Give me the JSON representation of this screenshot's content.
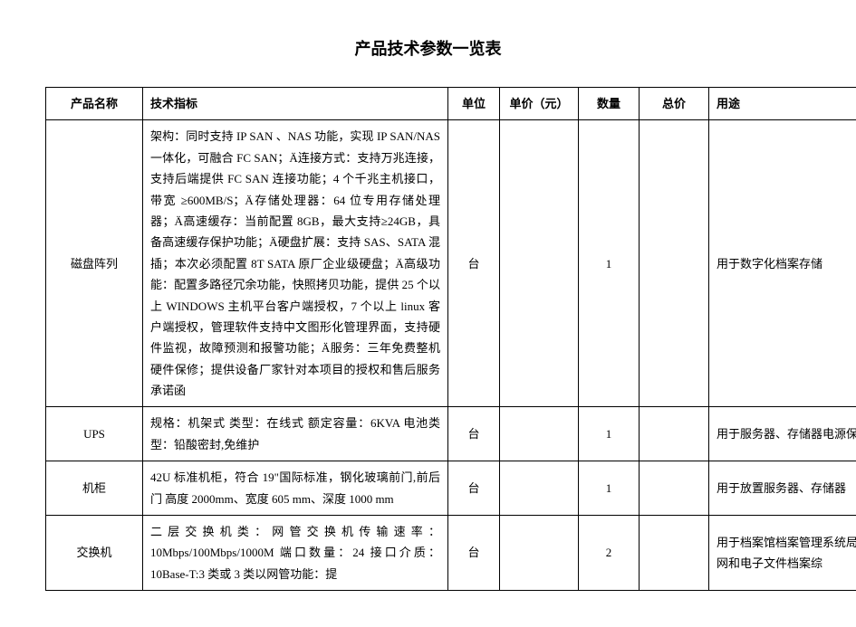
{
  "title": "产品技术参数一览表",
  "table": {
    "columns": [
      "产品名称",
      "技术指标",
      "单位",
      "单价（元）",
      "数量",
      "总价",
      "用途"
    ],
    "rows": [
      {
        "name": "磁盘阵列",
        "spec": "架构：同时支持 IP SAN 、NAS 功能，实现 IP SAN/NAS 一体化，可融合 FC SAN；Ä连接方式：支持万兆连接，支持后端提供 FC SAN 连接功能；4 个千兆主机接口，带宽 ≥600MB/S；Ä存储处理器：64 位专用存储处理器；Ä高速缓存：当前配置 8GB，最大支持≥24GB，具备高速缓存保护功能；Ä硬盘扩展：支持 SAS、SATA 混插；本次必须配置 8T SATA 原厂企业级硬盘；Ä高级功能：配置多路径冗余功能，快照拷贝功能，提供 25 个以上 WINDOWS 主机平台客户端授权，7 个以上 linux 客户端授权，管理软件支持中文图形化管理界面，支持硬件监视，故障预测和报警功能；Ä服务：三年免费整机硬件保修；提供设备厂家针对本项目的授权和售后服务承诺函",
        "unit": "台",
        "price": "",
        "qty": "1",
        "total": "",
        "use": "用于数字化档案存储"
      },
      {
        "name": "UPS",
        "spec": "规格：机架式  类型：在线式  额定容量：6KVA  电池类型：铅酸密封,免维护",
        "unit": "台",
        "price": "",
        "qty": "1",
        "total": "",
        "use": "用于服务器、存储器电源保障"
      },
      {
        "name": "机柜",
        "spec": "42U 标准机柜，符合 19\"国际标准，钢化玻璃前门,前后门 高度 2000mm、宽度 605 mm、深度 1000 mm",
        "unit": "台",
        "price": "",
        "qty": "1",
        "total": "",
        "use": "用于放置服务器、存储器"
      },
      {
        "name": "交换机",
        "spec": "二层交换机类：网管交换机传输速率：10Mbps/100Mbps/1000M 端口数量：24 接口介质：10Base-T:3 类或 3 类以网管功能：提",
        "unit": "台",
        "price": "",
        "qty": "2",
        "total": "",
        "use": "用于档案馆档案管理系统局域网和电子文件档案综"
      }
    ]
  }
}
